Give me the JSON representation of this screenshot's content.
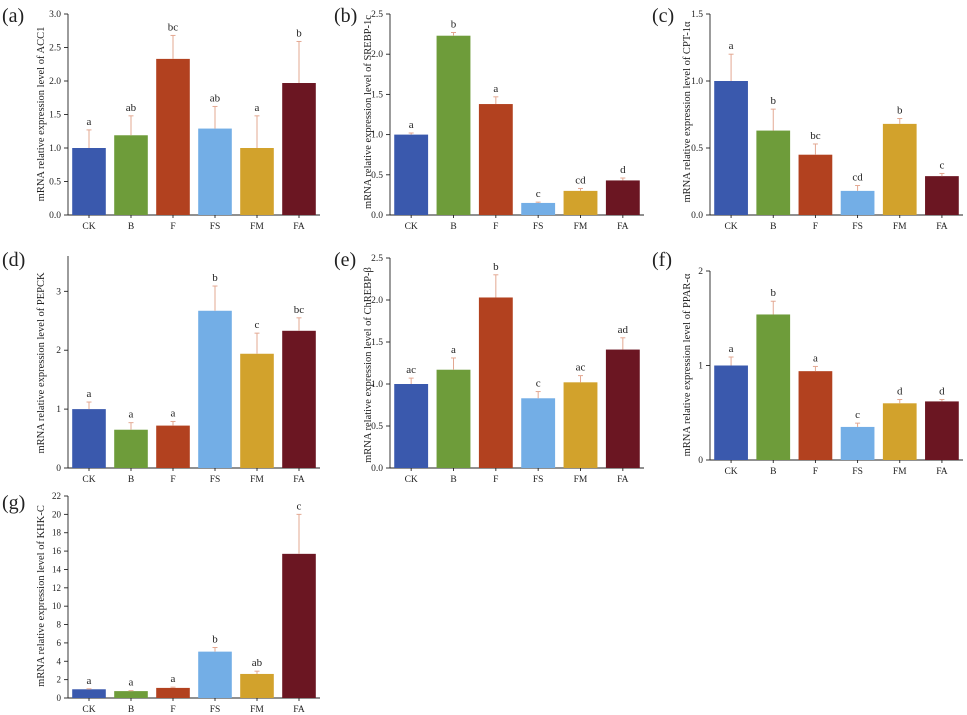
{
  "colors": [
    "#3a59ad",
    "#6e9c3a",
    "#b2411f",
    "#73aee6",
    "#d2a22c",
    "#6b1622"
  ],
  "error_color": "#e3a892",
  "chart_data": [
    {
      "panel": "(a)",
      "type": "bar",
      "ylabel": "mRNA relative expression level of ACC1",
      "categories": [
        "CK",
        "B",
        "F",
        "FS",
        "FM",
        "FA"
      ],
      "values": [
        1.0,
        1.19,
        2.33,
        1.29,
        1.0,
        1.97
      ],
      "errors": [
        0.27,
        0.29,
        0.35,
        0.33,
        0.48,
        0.62
      ],
      "letters": [
        "a",
        "ab",
        "bc",
        "ab",
        "a",
        "b"
      ],
      "ylim": [
        0,
        3.0
      ],
      "yticks": [
        0.0,
        0.5,
        1.0,
        1.5,
        2.0,
        2.5,
        3.0
      ],
      "yticklabels": [
        "0.0",
        "0.5",
        "1.0",
        "1.5",
        "2.0",
        "2.5",
        "3.0"
      ]
    },
    {
      "panel": "(b)",
      "type": "bar",
      "ylabel": "mRNA relative expression level of SREBP-1c",
      "categories": [
        "CK",
        "B",
        "F",
        "FS",
        "FM",
        "FA"
      ],
      "values": [
        1.0,
        2.23,
        1.38,
        0.15,
        0.3,
        0.43
      ],
      "errors": [
        0.02,
        0.04,
        0.09,
        0.01,
        0.03,
        0.03
      ],
      "letters": [
        "a",
        "b",
        "a",
        "c",
        "cd",
        "d"
      ],
      "ylim": [
        0,
        2.5
      ],
      "yticks": [
        0.0,
        0.5,
        1.0,
        1.5,
        2.0,
        2.5
      ],
      "yticklabels": [
        "0.0",
        "0.5",
        "1.0",
        "1.5",
        "2.0",
        "2.5"
      ]
    },
    {
      "panel": "(c)",
      "type": "bar",
      "ylabel": "mRNA relative expression level of CPT-1α",
      "categories": [
        "CK",
        "B",
        "F",
        "FS",
        "FM",
        "FA"
      ],
      "values": [
        1.0,
        0.63,
        0.45,
        0.18,
        0.68,
        0.29
      ],
      "errors": [
        0.2,
        0.16,
        0.08,
        0.04,
        0.04,
        0.02
      ],
      "letters": [
        "a",
        "b",
        "bc",
        "cd",
        "b",
        "c"
      ],
      "ylim": [
        0,
        1.5
      ],
      "yticks": [
        0.0,
        0.5,
        1.0,
        1.5
      ],
      "yticklabels": [
        "0.0",
        "0.5",
        "1.0",
        "1.5"
      ]
    },
    {
      "panel": "(d)",
      "type": "bar",
      "ylabel": "mRNA relative expression level of PEPCK",
      "categories": [
        "CK",
        "B",
        "F",
        "FS",
        "FM",
        "FA"
      ],
      "values": [
        1.0,
        0.65,
        0.72,
        2.67,
        1.94,
        2.33
      ],
      "errors": [
        0.12,
        0.12,
        0.07,
        0.42,
        0.35,
        0.22
      ],
      "letters": [
        "a",
        "a",
        "a",
        "b",
        "c",
        "bc"
      ],
      "ylim": [
        0,
        3.6
      ],
      "yticks": [
        0,
        1,
        2,
        3
      ],
      "yticklabels": [
        "0",
        "1",
        "2",
        "3"
      ]
    },
    {
      "panel": "(e)",
      "type": "bar",
      "ylabel": "mRNA relative expression level of ChREBP-β",
      "categories": [
        "CK",
        "B",
        "F",
        "FS",
        "FM",
        "FA"
      ],
      "values": [
        1.0,
        1.17,
        2.03,
        0.83,
        1.02,
        1.41
      ],
      "errors": [
        0.07,
        0.14,
        0.27,
        0.08,
        0.08,
        0.14
      ],
      "letters": [
        "ac",
        "a",
        "b",
        "c",
        "ac",
        "ad"
      ],
      "ylim": [
        0,
        2.5
      ],
      "yticks": [
        0.0,
        0.5,
        1.0,
        1.5,
        2.0,
        2.5
      ],
      "yticklabels": [
        "0.0",
        "0.5",
        "1.0",
        "1.5",
        "2.0",
        "2.5"
      ]
    },
    {
      "panel": "(f)",
      "type": "bar",
      "ylabel": "mRNA relative expression level of PPAR-α",
      "categories": [
        "CK",
        "B",
        "F",
        "FS",
        "FM",
        "FA"
      ],
      "values": [
        1.0,
        1.54,
        0.94,
        0.35,
        0.6,
        0.62
      ],
      "errors": [
        0.09,
        0.14,
        0.05,
        0.04,
        0.04,
        0.02
      ],
      "letters": [
        "a",
        "b",
        "a",
        "c",
        "d",
        "d"
      ],
      "ylim": [
        0,
        2.0
      ],
      "yticks": [
        0,
        1,
        2
      ],
      "yticklabels": [
        "0",
        "1",
        "2"
      ]
    },
    {
      "panel": "(g)",
      "type": "bar",
      "ylabel": "mRNA relative expression level of KHK-C",
      "categories": [
        "CK",
        "B",
        "F",
        "FS",
        "FM",
        "FA"
      ],
      "values": [
        0.95,
        0.75,
        1.1,
        5.05,
        2.62,
        15.7
      ],
      "errors": [
        0.05,
        0.05,
        0.08,
        0.45,
        0.3,
        4.3
      ],
      "letters": [
        "a",
        "a",
        "a",
        "b",
        "ab",
        "c"
      ],
      "ylim": [
        0,
        22
      ],
      "yticks": [
        0,
        2,
        4,
        6,
        8,
        10,
        12,
        14,
        16,
        18,
        20,
        22
      ],
      "yticklabels": [
        "0",
        "2",
        "4",
        "6",
        "8",
        "10",
        "12",
        "14",
        "16",
        "18",
        "20",
        "22"
      ]
    }
  ]
}
